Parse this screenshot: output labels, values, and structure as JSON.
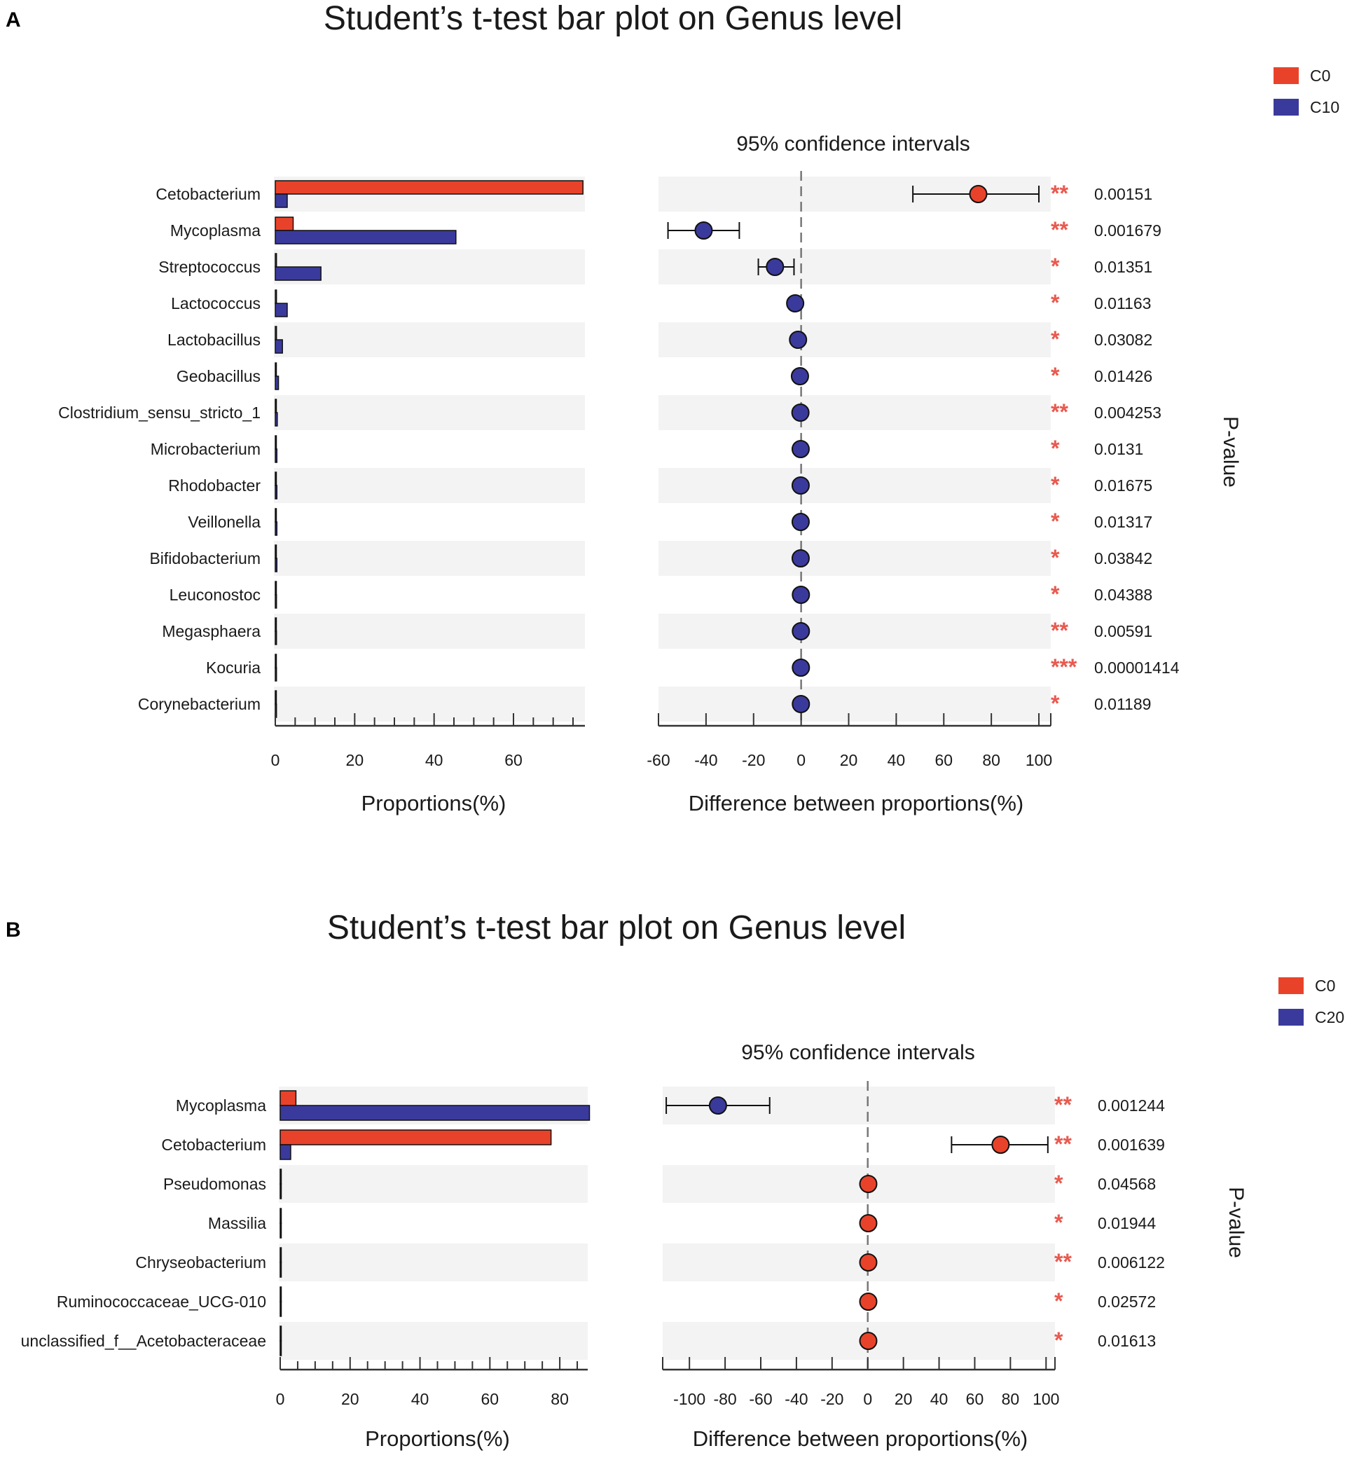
{
  "chart_data": [
    {
      "type": "bar",
      "panel": "A",
      "title": "Student’s t-test bar plot on Genus level",
      "ci_title": "95% confidence intervals",
      "xlabel_left": "Proportions(%)",
      "xlabel_right": "Difference between proportions(%)",
      "pvalue_label": "P-value",
      "legend": [
        {
          "name": "C0",
          "color": "#e8432a"
        },
        {
          "name": "C10",
          "color": "#3a3a9c"
        }
      ],
      "xlim_left": [
        0,
        78
      ],
      "xticks_left": [
        0,
        20,
        40,
        60
      ],
      "xlim_right": [
        -60,
        105
      ],
      "xticks_right": [
        -60,
        -40,
        -20,
        0,
        20,
        40,
        60,
        80,
        100
      ],
      "categories": [
        "Cetobacterium",
        "Mycoplasma",
        "Streptococcus",
        "Lactococcus",
        "Lactobacillus",
        "Geobacillus",
        "Clostridium_sensu_stricto_1",
        "Microbacterium",
        "Rhodobacter",
        "Veillonella",
        "Bifidobacterium",
        "Leuconostoc",
        "Megasphaera",
        "Kocuria",
        "Corynebacterium"
      ],
      "series": [
        {
          "name": "C0",
          "values": [
            77.5,
            4.5,
            0.3,
            0.3,
            0.3,
            0.2,
            0.2,
            0.2,
            0.2,
            0.2,
            0.2,
            0.2,
            0.2,
            0.2,
            0.2
          ]
        },
        {
          "name": "C10",
          "values": [
            3.0,
            45.5,
            11.5,
            3.0,
            1.8,
            0.8,
            0.5,
            0.4,
            0.4,
            0.4,
            0.4,
            0.3,
            0.3,
            0.3,
            0.3
          ]
        }
      ],
      "differences": [
        74.5,
        -41,
        -11,
        -2.5,
        -1.3,
        -0.5,
        -0.3,
        -0.2,
        -0.2,
        -0.2,
        -0.2,
        -0.1,
        -0.1,
        -0.1,
        -0.1
      ],
      "ci_low": [
        47,
        -56,
        -18,
        null,
        null,
        null,
        null,
        null,
        null,
        null,
        null,
        null,
        null,
        null,
        null
      ],
      "ci_high": [
        100,
        -26,
        -3,
        null,
        null,
        null,
        null,
        null,
        null,
        null,
        null,
        null,
        null,
        null,
        null
      ],
      "pvalues": [
        "0.00151",
        "0.001679",
        "0.01351",
        "0.01163",
        "0.03082",
        "0.01426",
        "0.004253",
        "0.0131",
        "0.01675",
        "0.01317",
        "0.03842",
        "0.04388",
        "0.00591",
        "0.00001414",
        "0.01189"
      ],
      "stars": [
        "**",
        "**",
        "*",
        "*",
        "*",
        "*",
        "**",
        "*",
        "*",
        "*",
        "*",
        "*",
        "**",
        "***",
        "*"
      ]
    },
    {
      "type": "bar",
      "panel": "B",
      "title": "Student’s t-test bar plot on Genus level",
      "ci_title": "95% confidence intervals",
      "xlabel_left": "Proportions(%)",
      "xlabel_right": "Difference between proportions(%)",
      "pvalue_label": "P-value",
      "legend": [
        {
          "name": "C0",
          "color": "#e8432a"
        },
        {
          "name": "C20",
          "color": "#3a3a9c"
        }
      ],
      "xlim_left": [
        0,
        88
      ],
      "xticks_left": [
        0,
        20,
        40,
        60,
        80
      ],
      "xlim_right": [
        -115,
        105
      ],
      "xticks_right": [
        -100,
        -80,
        -60,
        -40,
        -20,
        0,
        20,
        40,
        60,
        80,
        100
      ],
      "categories": [
        "Mycoplasma",
        "Cetobacterium",
        "Pseudomonas",
        "Massilia",
        "Chryseobacterium",
        "Ruminococcaceae_UCG-010",
        "unclassified_f__Acetobacteraceae"
      ],
      "series": [
        {
          "name": "C0",
          "values": [
            4.5,
            77.5,
            0.3,
            0.3,
            0.2,
            0.2,
            0.2
          ]
        },
        {
          "name": "C20",
          "values": [
            88.5,
            3.0,
            0.2,
            0.2,
            0.1,
            0.1,
            0.1
          ]
        }
      ],
      "differences": [
        -84,
        74.5,
        0.3,
        0.3,
        0.3,
        0.3,
        0.3
      ],
      "ci_low": [
        -113,
        47,
        null,
        null,
        null,
        null,
        null
      ],
      "ci_high": [
        -55,
        101,
        null,
        null,
        null,
        null,
        null
      ],
      "pvalues": [
        "0.001244",
        "0.001639",
        "0.04568",
        "0.01944",
        "0.006122",
        "0.02572",
        "0.01613"
      ],
      "stars": [
        "**",
        "**",
        "*",
        "*",
        "**",
        "*",
        "*"
      ]
    }
  ]
}
